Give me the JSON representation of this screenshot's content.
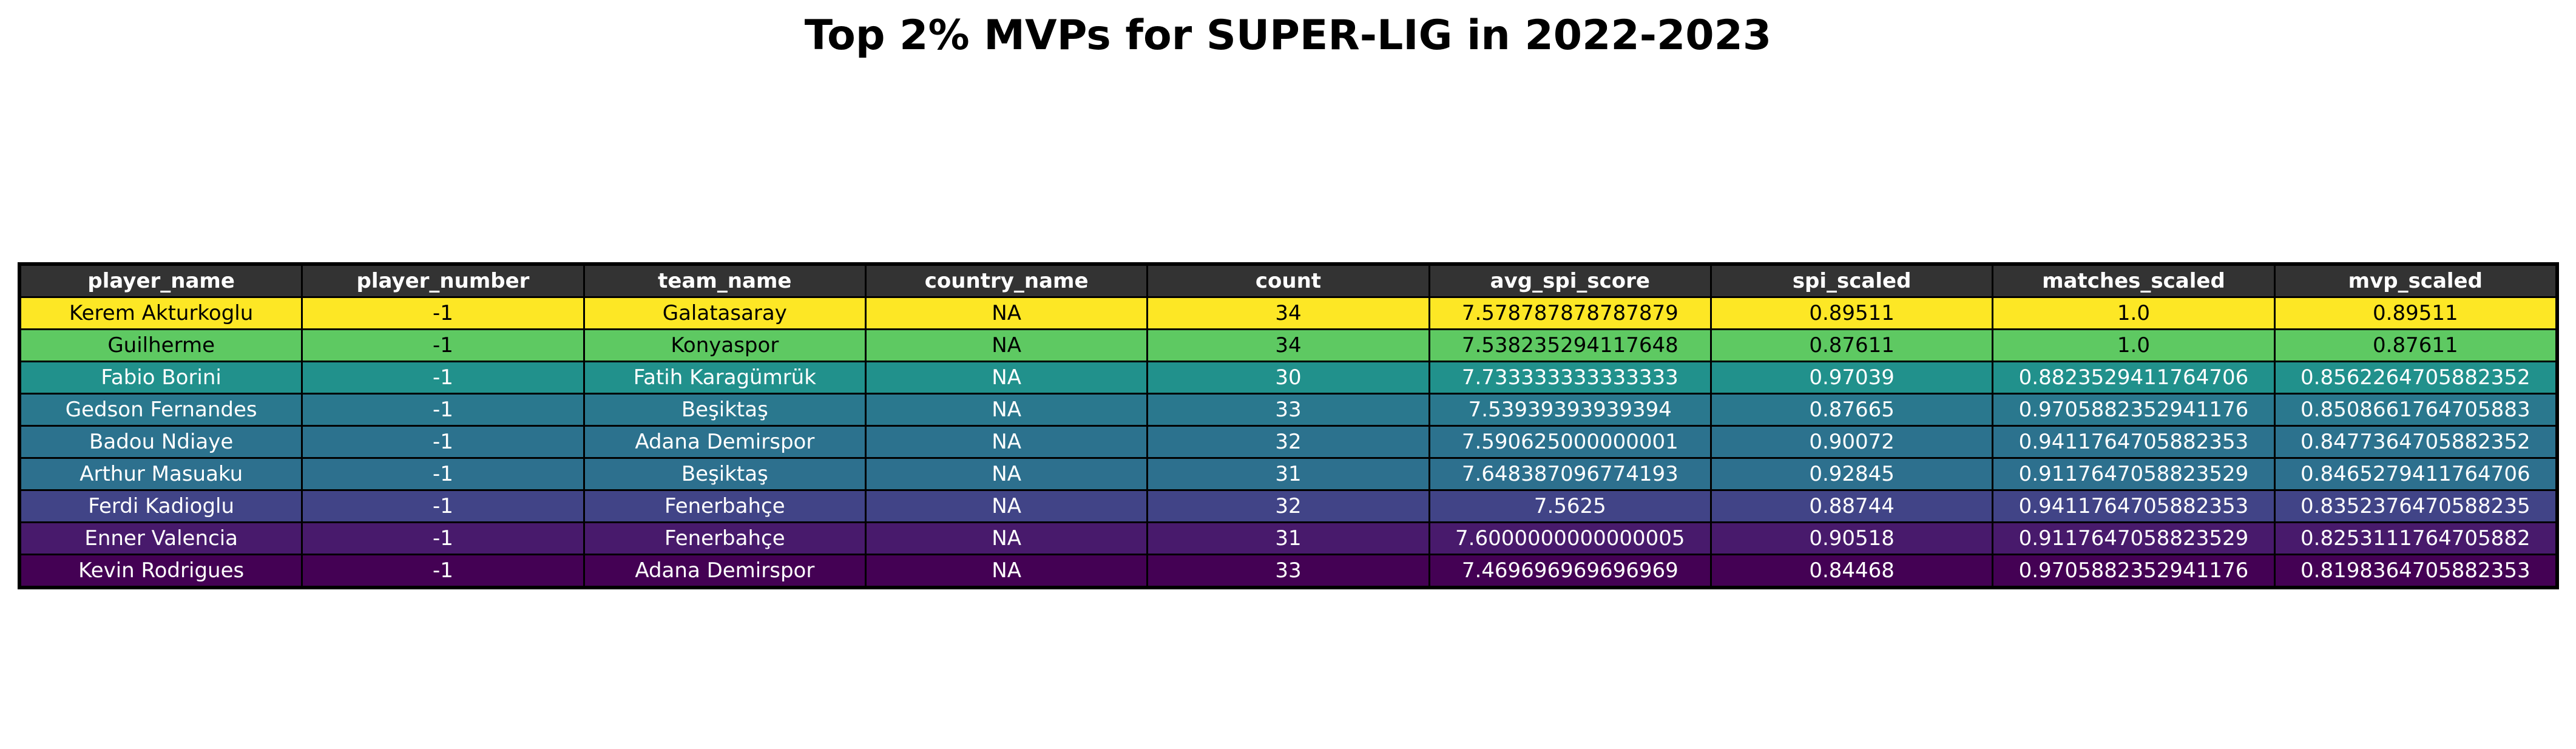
{
  "chart_data": {
    "type": "table",
    "title": "Top 2% MVPs for SUPER-LIG in 2022-2023",
    "columns": [
      "player_name",
      "player_number",
      "team_name",
      "country_name",
      "count",
      "avg_spi_score",
      "spi_scaled",
      "matches_scaled",
      "mvp_scaled"
    ],
    "rows": [
      {
        "cells": [
          "Kerem Akturkoglu",
          "-1",
          "Galatasaray",
          "NA",
          "34",
          "7.578787878787879",
          "0.89511",
          "1.0",
          "0.89511"
        ],
        "bg": "#fde725",
        "fg": "#000000"
      },
      {
        "cells": [
          "Guilherme",
          "-1",
          "Konyaspor",
          "NA",
          "34",
          "7.538235294117648",
          "0.87611",
          "1.0",
          "0.87611"
        ],
        "bg": "#5ec962",
        "fg": "#000000"
      },
      {
        "cells": [
          "Fabio Borini",
          "-1",
          "Fatih Karagümrük",
          "NA",
          "30",
          "7.733333333333333",
          "0.97039",
          "0.8823529411764706",
          "0.8562264705882352"
        ],
        "bg": "#21918c",
        "fg": "#ffffff"
      },
      {
        "cells": [
          "Gedson Fernandes",
          "-1",
          "Beşiktaş",
          "NA",
          "33",
          "7.53939393939394",
          "0.87665",
          "0.9705882352941176",
          "0.8508661764705883"
        ],
        "bg": "#2a788e",
        "fg": "#ffffff"
      },
      {
        "cells": [
          "Badou Ndiaye",
          "-1",
          "Adana Demirspor",
          "NA",
          "32",
          "7.590625000000001",
          "0.90072",
          "0.9411764705882353",
          "0.8477364705882352"
        ],
        "bg": "#2c728e",
        "fg": "#ffffff"
      },
      {
        "cells": [
          "Arthur Masuaku",
          "-1",
          "Beşiktaş",
          "NA",
          "31",
          "7.648387096774193",
          "0.92845",
          "0.9117647058823529",
          "0.8465279411764706"
        ],
        "bg": "#2d708e",
        "fg": "#ffffff"
      },
      {
        "cells": [
          "Ferdi Kadioglu",
          "-1",
          "Fenerbahçe",
          "NA",
          "32",
          "7.5625",
          "0.88744",
          "0.9411764705882353",
          "0.8352376470588235"
        ],
        "bg": "#414487",
        "fg": "#ffffff"
      },
      {
        "cells": [
          "Enner Valencia",
          "-1",
          "Fenerbahçe",
          "NA",
          "31",
          "7.6000000000000005",
          "0.90518",
          "0.9117647058823529",
          "0.8253111764705882"
        ],
        "bg": "#481a6c",
        "fg": "#ffffff"
      },
      {
        "cells": [
          "Kevin Rodrigues",
          "-1",
          "Adana Demirspor",
          "NA",
          "33",
          "7.469696969696969",
          "0.84468",
          "0.9705882352941176",
          "0.8198364705882353"
        ],
        "bg": "#440154",
        "fg": "#ffffff"
      }
    ]
  }
}
